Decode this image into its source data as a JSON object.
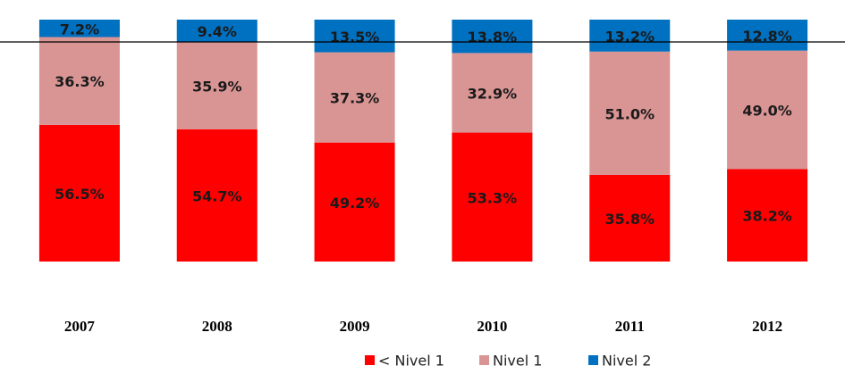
{
  "chart_data": {
    "type": "stacked_bar",
    "categories": [
      "2007",
      "2008",
      "2009",
      "2010",
      "2011",
      "2012"
    ],
    "series": [
      {
        "name": "< Nivel 1",
        "color": "#ff0000",
        "values": [
          56.5,
          54.7,
          49.2,
          53.3,
          35.8,
          38.2
        ],
        "value_labels": [
          "56.5%",
          "54.7%",
          "49.2%",
          "53.3%",
          "35.8%",
          "38.2%"
        ]
      },
      {
        "name": "Nivel 1",
        "color": "#d99594",
        "values": [
          36.3,
          35.9,
          37.3,
          32.9,
          51.0,
          49.0
        ],
        "value_labels": [
          "36.3%",
          "35.9%",
          "37.3%",
          "32.9%",
          "51.0%",
          "49.0%"
        ]
      },
      {
        "name": "Nivel 2",
        "color": "#0070c0",
        "values": [
          7.2,
          9.4,
          13.5,
          13.8,
          13.2,
          12.8
        ],
        "value_labels": [
          "7.2%",
          "9.4%",
          "13.5%",
          "13.8%",
          "13.2%",
          "12.8%"
        ]
      }
    ],
    "ylim": [
      0,
      100
    ],
    "legend": "bottom"
  }
}
